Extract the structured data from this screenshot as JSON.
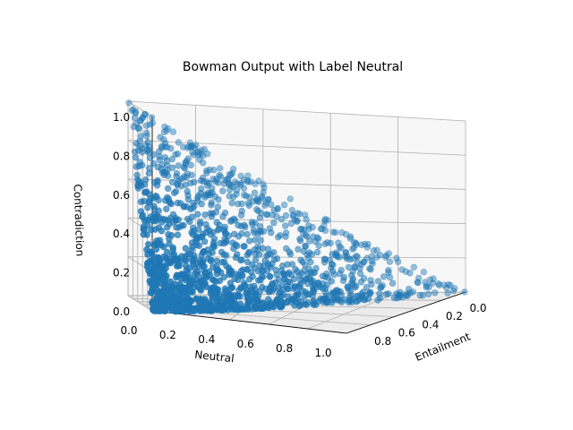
{
  "chart_data": {
    "type": "scatter",
    "projection": "3d",
    "title": "Bowman Output with Label Neutral",
    "xlabel": "Neutral",
    "ylabel": "Entailment",
    "zlabel": "Contradiction",
    "xlim": [
      0,
      1
    ],
    "ylim": [
      0,
      1
    ],
    "zlim": [
      0,
      1
    ],
    "x_ticks": [
      "0.0",
      "0.2",
      "0.4",
      "0.6",
      "0.8",
      "1.0"
    ],
    "y_ticks": [
      "0.0",
      "0.2",
      "0.4",
      "0.6",
      "0.8"
    ],
    "z_ticks": [
      "0.0",
      "0.2",
      "0.4",
      "0.6",
      "0.8",
      "1.0"
    ],
    "grid": true,
    "point_color": "#1f77b4",
    "constraint": "neutral + entailment + contradiction = 1",
    "sample_points": [
      {
        "neutral": 0.02,
        "entailment": 0.03,
        "contradiction": 0.95
      },
      {
        "neutral": 0.05,
        "entailment": 0.1,
        "contradiction": 0.85
      },
      {
        "neutral": 0.1,
        "entailment": 0.25,
        "contradiction": 0.65
      },
      {
        "neutral": 0.2,
        "entailment": 0.3,
        "contradiction": 0.5
      },
      {
        "neutral": 0.35,
        "entailment": 0.4,
        "contradiction": 0.25
      },
      {
        "neutral": 0.5,
        "entailment": 0.3,
        "contradiction": 0.2
      },
      {
        "neutral": 0.7,
        "entailment": 0.15,
        "contradiction": 0.15
      },
      {
        "neutral": 0.9,
        "entailment": 0.05,
        "contradiction": 0.05
      },
      {
        "neutral": 0.95,
        "entailment": 0.02,
        "contradiction": 0.03
      },
      {
        "neutral": 0.05,
        "entailment": 0.9,
        "contradiction": 0.05
      },
      {
        "neutral": 0.1,
        "entailment": 0.8,
        "contradiction": 0.1
      },
      {
        "neutral": 0.3,
        "entailment": 0.6,
        "contradiction": 0.1
      }
    ]
  }
}
